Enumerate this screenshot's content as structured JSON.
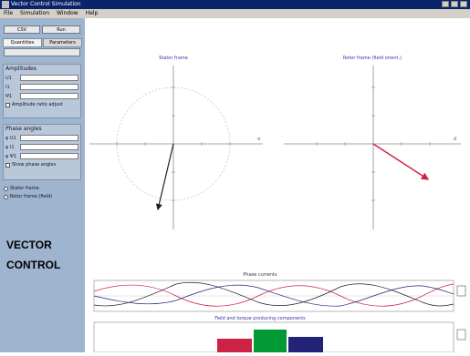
{
  "window": {
    "title": "Vector Control Simulation"
  },
  "menu": [
    "File",
    "Simulation",
    "Window",
    "Help"
  ],
  "toolbar": {
    "btn1": "CSV",
    "btn2": "Run"
  },
  "tabs": [
    "Quantities",
    "Parameters"
  ],
  "group1": {
    "title": "Amplitudes",
    "rows": [
      {
        "label": "U1"
      },
      {
        "label": "I1"
      },
      {
        "label": "Ψ1"
      }
    ],
    "check": "Amplitude ratio adjust"
  },
  "group2": {
    "title": "Phase angles",
    "rows": [
      {
        "label": "φ U1"
      },
      {
        "label": "φ I1"
      },
      {
        "label": "φ Ψ1"
      }
    ],
    "check": "Show phase angles"
  },
  "radios": [
    "Stator frame",
    "Rotor frame (field)"
  ],
  "sidebar_label": {
    "line1": "VECTOR",
    "line2": "CONTROL"
  },
  "left_plot": {
    "title": "Stator frame"
  },
  "right_plot": {
    "title": "Rotor frame (field orient.)"
  },
  "time_plot": {
    "title": "Phase currents"
  },
  "bar_plot": {
    "title": "Field and torque producing components"
  },
  "colors": {
    "accent_red": "#cc2244",
    "dark": "#222222",
    "green": "#009933",
    "navy": "#222277"
  }
}
